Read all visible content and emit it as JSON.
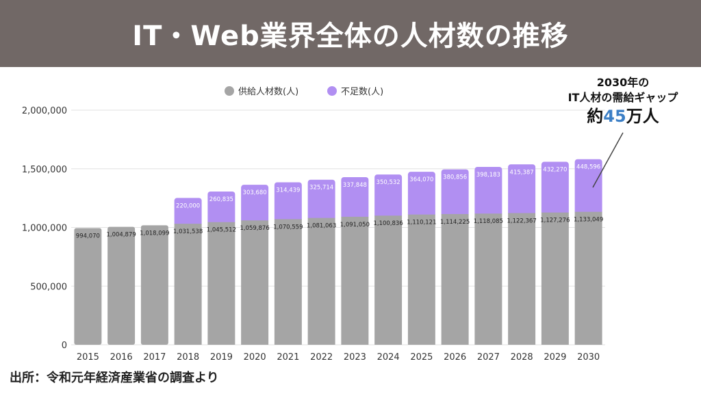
{
  "header": {
    "title": "IT・Web業界全体の人材数の推移"
  },
  "annotation": {
    "line1": "2030年の",
    "line2": "IT人材の需給ギャップ",
    "line3_prefix": "約",
    "line3_number": "45",
    "line3_suffix": "万人"
  },
  "source": "出所：令和元年経済産業省の調査より",
  "colors": {
    "supply": "#a5a5a5",
    "shortage": "#b18ff2",
    "header_bg": "#716866",
    "accent": "#3c7fc6"
  },
  "chart_data": {
    "type": "bar",
    "stacked": true,
    "categories": [
      "2015",
      "2016",
      "2017",
      "2018",
      "2019",
      "2020",
      "2021",
      "2022",
      "2023",
      "2024",
      "2025",
      "2026",
      "2027",
      "2028",
      "2029",
      "2030"
    ],
    "series": [
      {
        "name": "供給人材数(人)",
        "values": [
          994070,
          1004879,
          1018099,
          1031538,
          1045512,
          1059876,
          1070559,
          1081063,
          1091050,
          1100836,
          1110121,
          1114225,
          1118085,
          1122367,
          1127276,
          1133049
        ],
        "labels": [
          "994,070",
          "1,004,879",
          "1,018,099",
          "1,031,538",
          "1,045,512",
          "1,059,876",
          "1,070,559",
          "1,081,063",
          "1,091,050",
          "1,100,836",
          "1,110,121",
          "1,114,225",
          "1,118,085",
          "1,122,367",
          "1,127,276",
          "1,133,049"
        ]
      },
      {
        "name": "不足数(人)",
        "values": [
          null,
          null,
          null,
          220000,
          260835,
          303680,
          314439,
          325714,
          337848,
          350532,
          364070,
          380856,
          398183,
          415387,
          432270,
          448596
        ],
        "labels": [
          "",
          "",
          "",
          "220,000",
          "260,835",
          "303,680",
          "314,439",
          "325,714",
          "337,848",
          "350,532",
          "364,070",
          "380,856",
          "398,183",
          "415,387",
          "432,270",
          "448,596"
        ]
      }
    ],
    "ylim": [
      0,
      2000000
    ],
    "yticks": [
      0,
      500000,
      1000000,
      1500000,
      2000000
    ],
    "ytick_labels": [
      "0",
      "500,000",
      "1,000,000",
      "1,500,000",
      "2,000,000"
    ],
    "grid": true,
    "legend": "top-center"
  }
}
